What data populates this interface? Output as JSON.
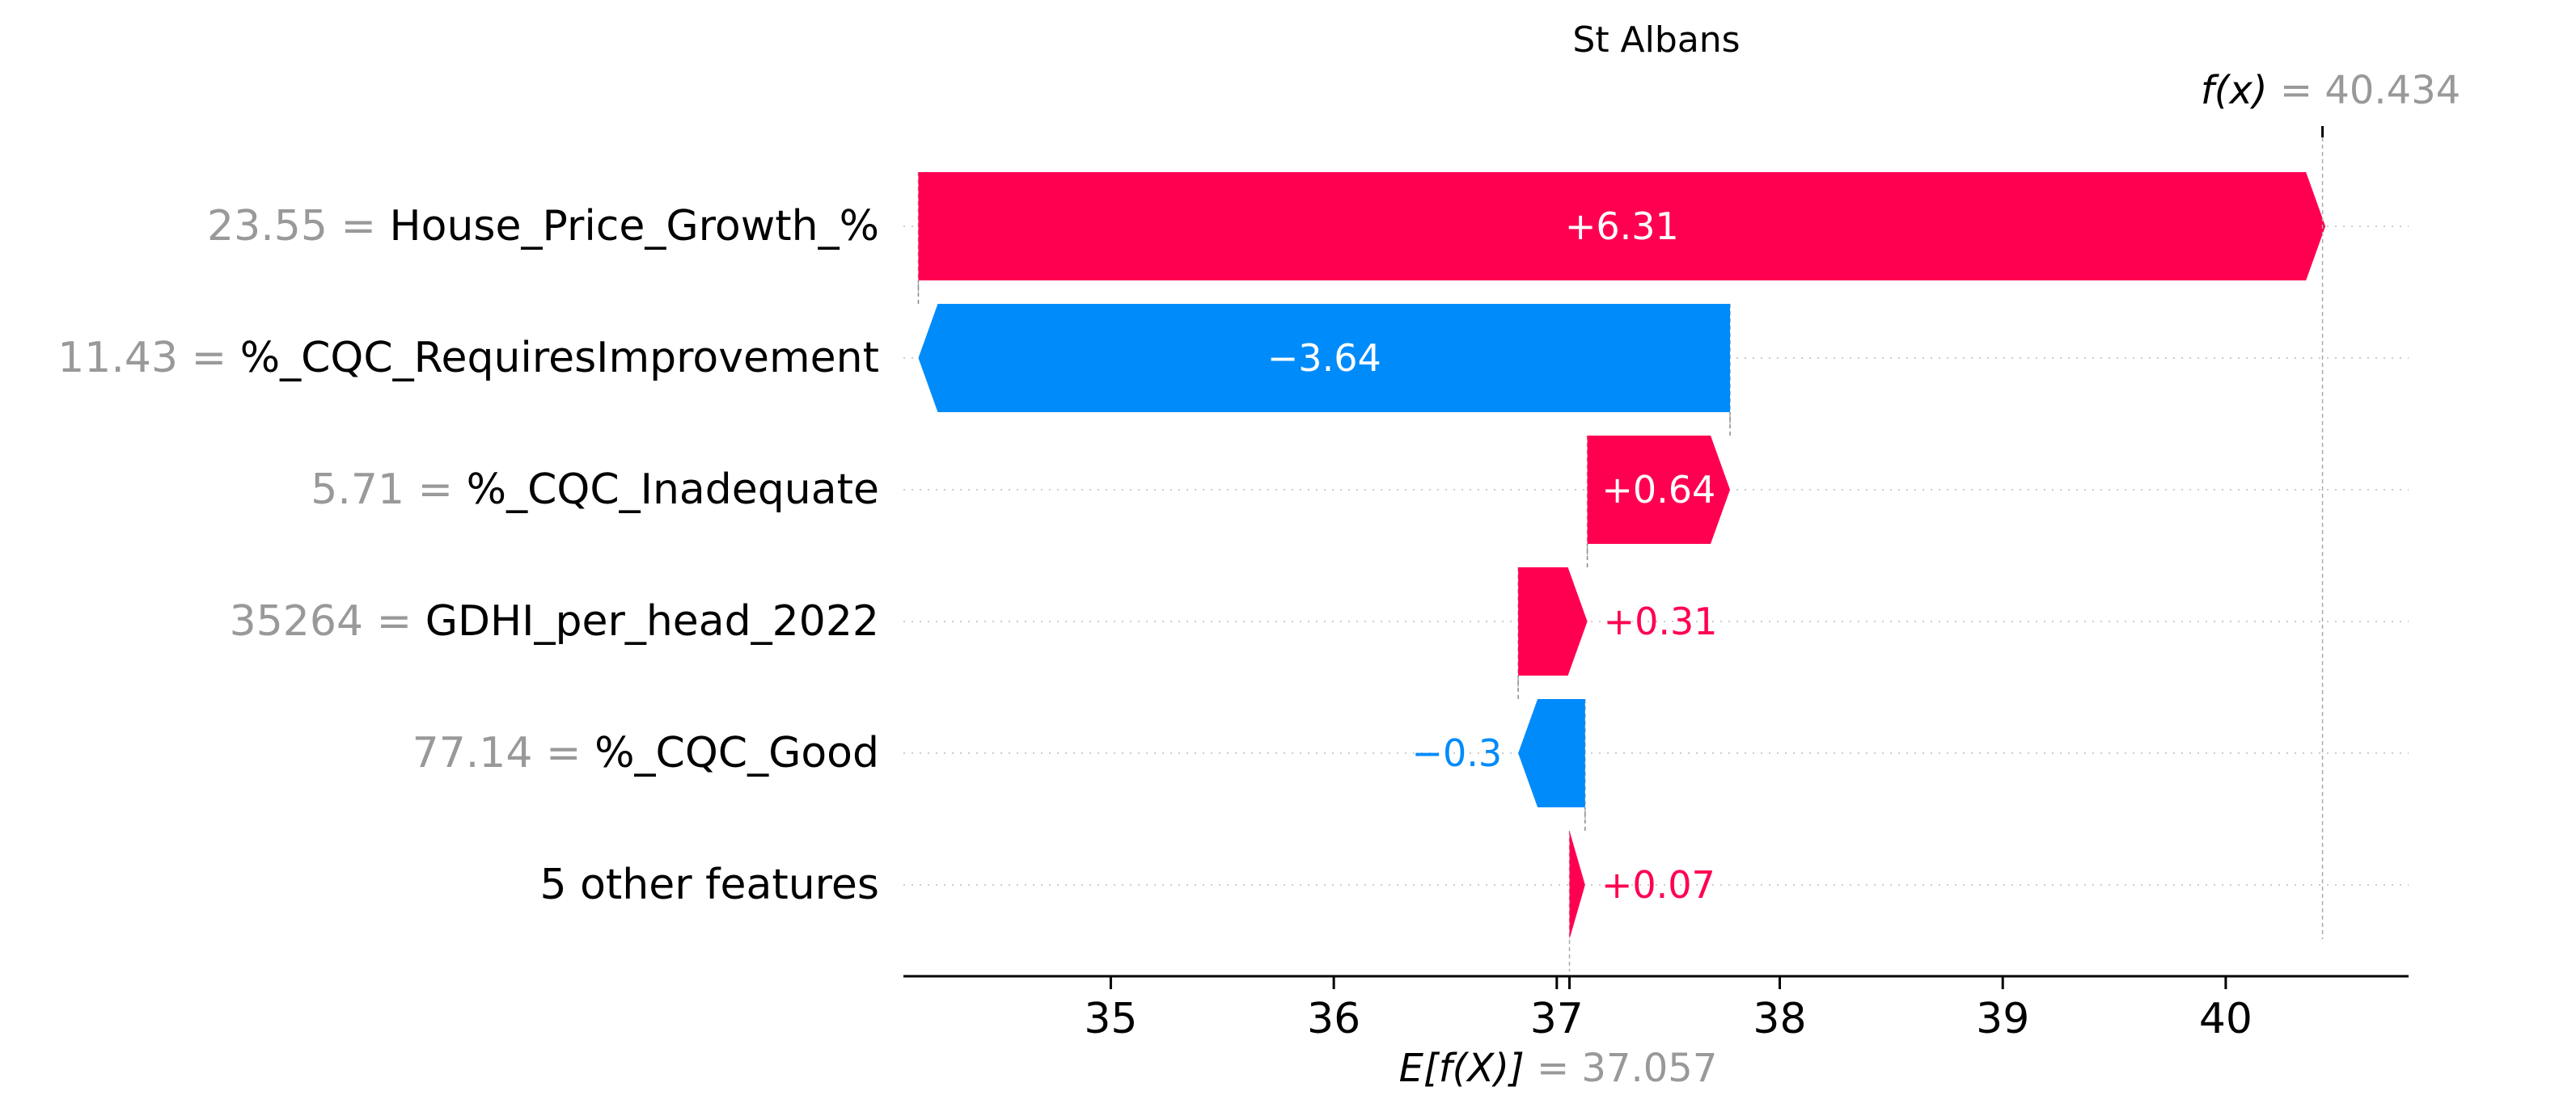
{
  "chart_data": {
    "type": "waterfall",
    "title": "St Albans",
    "xlim": [
      34.07,
      40.82
    ],
    "x_ticks": [
      "35",
      "36",
      "37",
      "38",
      "39",
      "40"
    ],
    "x_tick_values": [
      35,
      36,
      37,
      38,
      39,
      40
    ],
    "base_value": 37.057,
    "base_value_label": "37.057",
    "output_value": 40.434,
    "output_value_label": "40.434",
    "base_symbol": "E[f(X)]",
    "output_symbol": "f(x)",
    "colors": {
      "positive": "#ff0051",
      "negative": "#008bfb",
      "feature_value": "#999999",
      "text": "#000000"
    },
    "features": [
      {
        "value_text": "23.55",
        "name": "House_Price_Growth_%",
        "shap": 6.31,
        "shap_label": "+6.31"
      },
      {
        "value_text": "11.43",
        "name": "%_CQC_RequiresImprovement",
        "shap": -3.64,
        "shap_label": "−3.64"
      },
      {
        "value_text": "5.71",
        "name": "%_CQC_Inadequate",
        "shap": 0.64,
        "shap_label": "+0.64"
      },
      {
        "value_text": "35264",
        "name": "GDHI_per_head_2022",
        "shap": 0.31,
        "shap_label": "+0.31"
      },
      {
        "value_text": "77.14",
        "name": "%_CQC_Good",
        "shap": -0.3,
        "shap_label": "−0.3"
      },
      {
        "value_text": "",
        "name": "5 other features",
        "shap": 0.07,
        "shap_label": "+0.07"
      }
    ]
  }
}
